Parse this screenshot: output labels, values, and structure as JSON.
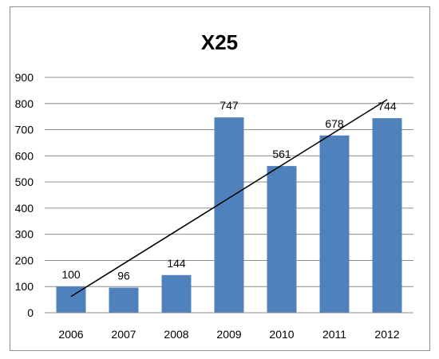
{
  "chart_data": {
    "type": "bar",
    "title": "X25",
    "categories": [
      "2006",
      "2007",
      "2008",
      "2009",
      "2010",
      "2011",
      "2012"
    ],
    "values": [
      100,
      96,
      144,
      747,
      561,
      678,
      744
    ],
    "data_labels": [
      "100",
      "96",
      "144",
      "747",
      "561",
      "678",
      "744"
    ],
    "ylim": [
      0,
      900
    ],
    "yticks": [
      "0",
      "100",
      "200",
      "300",
      "400",
      "500",
      "600",
      "700",
      "800",
      "900"
    ],
    "grid": true,
    "legend": "none",
    "bar_color": "#4f81bd",
    "trendline": {
      "type": "linear",
      "color": "#000000"
    }
  }
}
